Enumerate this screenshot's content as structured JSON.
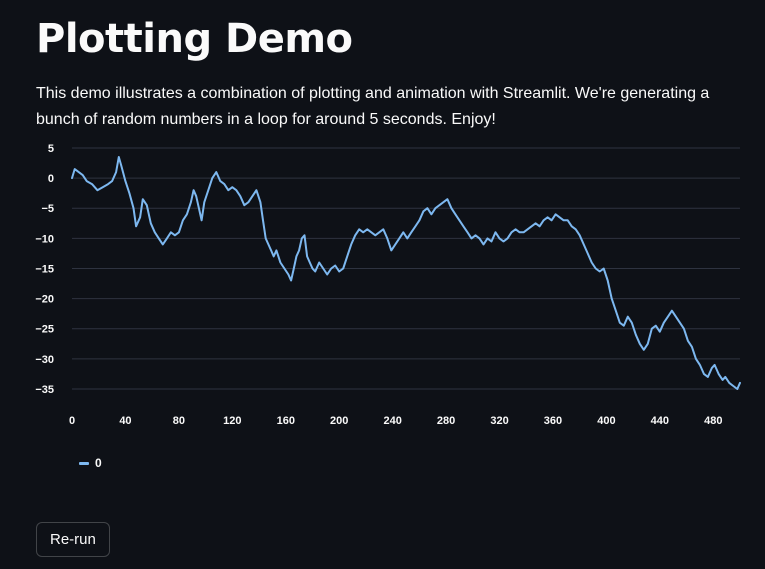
{
  "page": {
    "title": "Plotting Demo",
    "description": "This demo illustrates a combination of plotting and animation with Streamlit. We're generating a bunch of random numbers in a loop for around 5 seconds. Enjoy!"
  },
  "actions": {
    "rerun_label": "Re-run"
  },
  "colors": {
    "background": "#0e1117",
    "series": "#7db8f0",
    "grid": "#2e3340",
    "text": "#fafafa"
  },
  "chart_data": {
    "type": "line",
    "title": "",
    "xlabel": "",
    "ylabel": "",
    "xlim": [
      0,
      500
    ],
    "ylim": [
      -36.5,
      5
    ],
    "xticks": [
      0,
      40,
      80,
      120,
      160,
      200,
      240,
      280,
      320,
      360,
      400,
      440,
      480
    ],
    "yticks": [
      5,
      0,
      -5,
      -10,
      -15,
      -20,
      -25,
      -30,
      -35
    ],
    "grid": true,
    "legend": {
      "position": "bottom-left",
      "entries": [
        "0"
      ]
    },
    "series": [
      {
        "name": "0",
        "color": "#7db8f0",
        "points": [
          [
            0,
            0
          ],
          [
            2,
            1.5
          ],
          [
            5,
            1
          ],
          [
            8,
            0.5
          ],
          [
            11,
            -0.5
          ],
          [
            15,
            -1
          ],
          [
            19,
            -2
          ],
          [
            23,
            -1.5
          ],
          [
            27,
            -1
          ],
          [
            30,
            -0.5
          ],
          [
            33,
            1
          ],
          [
            35,
            3.5
          ],
          [
            37,
            2
          ],
          [
            40,
            -0.5
          ],
          [
            43,
            -2.5
          ],
          [
            46,
            -5
          ],
          [
            48,
            -8
          ],
          [
            51,
            -6.5
          ],
          [
            53,
            -3.5
          ],
          [
            56,
            -4.5
          ],
          [
            59,
            -7.5
          ],
          [
            62,
            -9
          ],
          [
            65,
            -10
          ],
          [
            68,
            -11
          ],
          [
            71,
            -10
          ],
          [
            74,
            -9
          ],
          [
            77,
            -9.5
          ],
          [
            80,
            -9
          ],
          [
            83,
            -7
          ],
          [
            86,
            -6
          ],
          [
            89,
            -4
          ],
          [
            91,
            -2
          ],
          [
            93,
            -3
          ],
          [
            95,
            -5
          ],
          [
            97,
            -7
          ],
          [
            99,
            -4
          ],
          [
            102,
            -2
          ],
          [
            105,
            0
          ],
          [
            108,
            1
          ],
          [
            111,
            -0.5
          ],
          [
            114,
            -1
          ],
          [
            117,
            -2
          ],
          [
            120,
            -1.5
          ],
          [
            123,
            -2
          ],
          [
            126,
            -3
          ],
          [
            129,
            -4.5
          ],
          [
            132,
            -4
          ],
          [
            135,
            -3
          ],
          [
            138,
            -2
          ],
          [
            141,
            -4
          ],
          [
            143,
            -7
          ],
          [
            145,
            -10
          ],
          [
            147,
            -11
          ],
          [
            149,
            -12
          ],
          [
            151,
            -13
          ],
          [
            153,
            -12
          ],
          [
            156,
            -14
          ],
          [
            159,
            -15
          ],
          [
            162,
            -16
          ],
          [
            164,
            -17
          ],
          [
            166,
            -15
          ],
          [
            168,
            -13
          ],
          [
            170,
            -12
          ],
          [
            172,
            -10
          ],
          [
            174,
            -9.5
          ],
          [
            176,
            -13
          ],
          [
            178,
            -14
          ],
          [
            180,
            -15
          ],
          [
            182,
            -15.5
          ],
          [
            185,
            -14
          ],
          [
            188,
            -15
          ],
          [
            191,
            -16
          ],
          [
            194,
            -15
          ],
          [
            197,
            -14.5
          ],
          [
            200,
            -15.5
          ],
          [
            203,
            -15
          ],
          [
            206,
            -13
          ],
          [
            209,
            -11
          ],
          [
            212,
            -9.5
          ],
          [
            215,
            -8.5
          ],
          [
            218,
            -9
          ],
          [
            221,
            -8.5
          ],
          [
            224,
            -9
          ],
          [
            227,
            -9.5
          ],
          [
            230,
            -9
          ],
          [
            233,
            -8.5
          ],
          [
            236,
            -10
          ],
          [
            239,
            -12
          ],
          [
            242,
            -11
          ],
          [
            245,
            -10
          ],
          [
            248,
            -9
          ],
          [
            251,
            -10
          ],
          [
            254,
            -9
          ],
          [
            257,
            -8
          ],
          [
            260,
            -7
          ],
          [
            263,
            -5.5
          ],
          [
            266,
            -5
          ],
          [
            269,
            -6
          ],
          [
            272,
            -5
          ],
          [
            275,
            -4.5
          ],
          [
            278,
            -4
          ],
          [
            281,
            -3.5
          ],
          [
            284,
            -5
          ],
          [
            287,
            -6
          ],
          [
            290,
            -7
          ],
          [
            293,
            -8
          ],
          [
            296,
            -9
          ],
          [
            299,
            -10
          ],
          [
            302,
            -9.5
          ],
          [
            305,
            -10
          ],
          [
            308,
            -11
          ],
          [
            311,
            -10
          ],
          [
            314,
            -10.5
          ],
          [
            317,
            -9
          ],
          [
            320,
            -10
          ],
          [
            323,
            -10.5
          ],
          [
            326,
            -10
          ],
          [
            329,
            -9
          ],
          [
            332,
            -8.5
          ],
          [
            335,
            -9
          ],
          [
            338,
            -9
          ],
          [
            341,
            -8.5
          ],
          [
            344,
            -8
          ],
          [
            347,
            -7.5
          ],
          [
            350,
            -8
          ],
          [
            353,
            -7
          ],
          [
            356,
            -6.5
          ],
          [
            359,
            -7
          ],
          [
            362,
            -6
          ],
          [
            365,
            -6.5
          ],
          [
            368,
            -7
          ],
          [
            371,
            -7
          ],
          [
            374,
            -8
          ],
          [
            377,
            -8.5
          ],
          [
            380,
            -9.5
          ],
          [
            383,
            -11
          ],
          [
            386,
            -12.5
          ],
          [
            389,
            -14
          ],
          [
            392,
            -15
          ],
          [
            395,
            -15.5
          ],
          [
            398,
            -15
          ],
          [
            401,
            -17
          ],
          [
            404,
            -20
          ],
          [
            407,
            -22
          ],
          [
            410,
            -24
          ],
          [
            413,
            -24.5
          ],
          [
            416,
            -23
          ],
          [
            419,
            -24
          ],
          [
            422,
            -26
          ],
          [
            425,
            -27.5
          ],
          [
            428,
            -28.5
          ],
          [
            431,
            -27.5
          ],
          [
            434,
            -25
          ],
          [
            437,
            -24.5
          ],
          [
            440,
            -25.5
          ],
          [
            443,
            -24
          ],
          [
            446,
            -23
          ],
          [
            449,
            -22
          ],
          [
            452,
            -23
          ],
          [
            455,
            -24
          ],
          [
            458,
            -25
          ],
          [
            461,
            -27
          ],
          [
            464,
            -28
          ],
          [
            467,
            -30
          ],
          [
            470,
            -31
          ],
          [
            473,
            -32.5
          ],
          [
            476,
            -33
          ],
          [
            479,
            -31.5
          ],
          [
            481,
            -31
          ],
          [
            484,
            -32.5
          ],
          [
            487,
            -33.5
          ],
          [
            489,
            -33
          ],
          [
            492,
            -34
          ],
          [
            495,
            -34.5
          ],
          [
            498,
            -35
          ],
          [
            500,
            -34
          ]
        ]
      }
    ]
  }
}
